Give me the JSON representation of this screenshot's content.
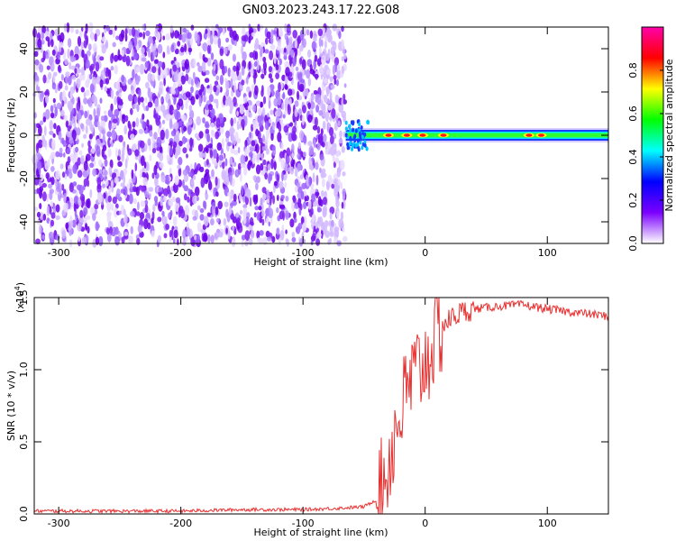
{
  "title": "GN03.2023.243.17.22.G08",
  "chart_data": [
    {
      "type": "heatmap",
      "xlabel": "Height of straight line (km)",
      "ylabel": "Frequency (Hz)",
      "xlim": [
        -320,
        150
      ],
      "ylim": [
        -50,
        50
      ],
      "x_ticks": [
        -300,
        -200,
        -100,
        0,
        100
      ],
      "y_ticks": [
        -40,
        -20,
        0,
        20,
        40
      ],
      "colorbar": {
        "label": "Normalized spectral amplitude",
        "range": [
          0,
          1
        ],
        "ticks": [
          "0.0",
          "0.2",
          "0.4",
          "0.6",
          "0.8"
        ],
        "tick_values": [
          0,
          0.2,
          0.4,
          0.6,
          0.8
        ],
        "colors": [
          "#ffffff",
          "#7b00ff",
          "#0000ff",
          "#00ffff",
          "#00ff00",
          "#ffff00",
          "#ff0000",
          "#ff00aa"
        ]
      },
      "noise_region_x": [
        -320,
        -65
      ],
      "signal_region_x": [
        -65,
        150
      ],
      "signal_center_hz": 0,
      "signal_hot_spots_km": [
        -30,
        -15,
        -2,
        15,
        85,
        95
      ]
    },
    {
      "type": "line",
      "xlabel": "Height of straight line (km)",
      "ylabel": "SNR (10 * v/v)",
      "y_multiplier": "(x10",
      "y_multiplier_exp": "4",
      "y_multiplier_close": ")",
      "xlim": [
        -320,
        150
      ],
      "ylim": [
        0,
        1.5
      ],
      "x_ticks": [
        -300,
        -200,
        -100,
        0,
        100
      ],
      "y_ticks": [
        "0.0",
        "0.5",
        "1.0",
        "1.5"
      ],
      "y_tick_values": [
        0,
        0.5,
        1.0,
        1.5
      ],
      "color": "#e83030",
      "x": [
        -320,
        -300,
        -250,
        -200,
        -150,
        -100,
        -70,
        -50,
        -40,
        -35,
        -30,
        -25,
        -20,
        -15,
        -10,
        -5,
        0,
        5,
        10,
        15,
        20,
        30,
        40,
        60,
        80,
        100,
        120,
        150
      ],
      "y": [
        0.02,
        0.02,
        0.02,
        0.02,
        0.03,
        0.03,
        0.04,
        0.05,
        0.1,
        0.2,
        0.35,
        0.55,
        0.7,
        0.85,
        0.95,
        1.0,
        1.05,
        1.15,
        1.25,
        1.3,
        1.35,
        1.4,
        1.42,
        1.44,
        1.45,
        1.42,
        1.4,
        1.37
      ]
    }
  ]
}
